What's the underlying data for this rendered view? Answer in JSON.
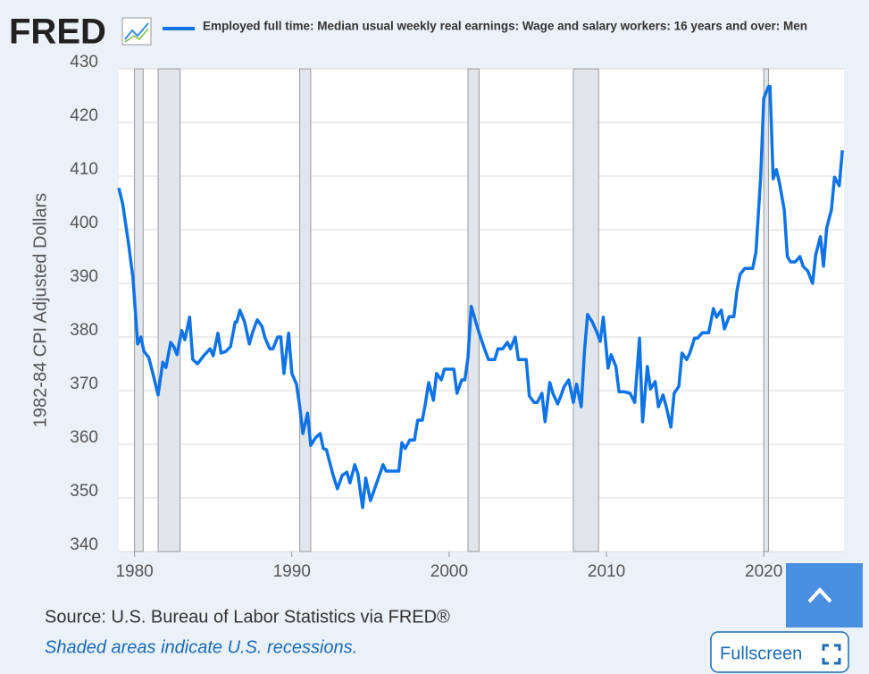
{
  "logo": "FRED",
  "fullscreen_button": "Fullscreen",
  "chart_data": {
    "type": "line",
    "y_label": "1982-84 CPI Adjusted Dollars",
    "source": "Source: U.S. Bureau of Labor Statistics via FRED®",
    "note": "Shaded areas indicate U.S. recessions.",
    "xlim": [
      1979,
      2025.1
    ],
    "xticks": [
      1980,
      1990,
      2000,
      2010,
      2020
    ],
    "ylim": [
      340,
      430
    ],
    "yticks": [
      340,
      350,
      360,
      370,
      380,
      390,
      400,
      410,
      420,
      430
    ],
    "grid": true,
    "recessions": [
      [
        1980.0,
        1980.55
      ],
      [
        1981.5,
        1982.9
      ],
      [
        1990.5,
        1991.2
      ],
      [
        2001.2,
        2001.9
      ],
      [
        2007.9,
        2009.5
      ],
      [
        2020.0,
        2020.3
      ]
    ],
    "x": [
      1979.0,
      1979.25,
      1979.6,
      1979.9,
      1980.2,
      1980.4,
      1980.6,
      1980.9,
      1981.2,
      1981.5,
      1981.8,
      1982.0,
      1982.3,
      1982.5,
      1982.7,
      1983.0,
      1983.2,
      1983.5,
      1983.7,
      1984.0,
      1984.4,
      1984.8,
      1985.0,
      1985.3,
      1985.5,
      1985.8,
      1986.1,
      1986.4,
      1986.5,
      1986.7,
      1987.0,
      1987.3,
      1987.5,
      1987.8,
      1988.1,
      1988.3,
      1988.6,
      1988.8,
      1989.1,
      1989.3,
      1989.5,
      1989.8,
      1990.0,
      1990.3,
      1990.5,
      1990.7,
      1991.0,
      1991.2,
      1991.5,
      1991.8,
      1992.0,
      1992.2,
      1992.6,
      1992.9,
      1993.2,
      1993.5,
      1993.7,
      1994.0,
      1994.2,
      1994.5,
      1994.7,
      1995.0,
      1995.3,
      1995.8,
      1996.0,
      1996.4,
      1996.8,
      1997.0,
      1997.2,
      1997.5,
      1997.8,
      1998.0,
      1998.3,
      1998.5,
      1998.7,
      1999.0,
      1999.2,
      1999.5,
      1999.7,
      2000.0,
      2000.3,
      2000.5,
      2000.8,
      2001.0,
      2001.2,
      2001.4,
      2001.7,
      2001.9,
      2002.2,
      2002.5,
      2002.9,
      2003.1,
      2003.4,
      2003.7,
      2003.9,
      2004.2,
      2004.4,
      2004.9,
      2005.1,
      2005.4,
      2005.6,
      2005.9,
      2006.1,
      2006.4,
      2006.6,
      2006.9,
      2007.1,
      2007.3,
      2007.6,
      2007.9,
      2008.1,
      2008.4,
      2008.6,
      2008.8,
      2009.1,
      2009.4,
      2009.6,
      2009.8,
      2010.1,
      2010.3,
      2010.6,
      2010.8,
      2011.1,
      2011.5,
      2011.8,
      2012.1,
      2012.3,
      2012.6,
      2012.8,
      2013.1,
      2013.3,
      2013.6,
      2013.8,
      2014.1,
      2014.3,
      2014.6,
      2014.8,
      2015.1,
      2015.3,
      2015.6,
      2015.8,
      2016.1,
      2016.5,
      2016.8,
      2017.0,
      2017.3,
      2017.5,
      2017.8,
      2018.1,
      2018.3,
      2018.5,
      2018.8,
      2019.3,
      2019.5,
      2019.8,
      2020.0,
      2020.3,
      2020.4,
      2020.6,
      2020.8,
      2021.0,
      2021.3,
      2021.5,
      2021.7,
      2022.0,
      2022.3,
      2022.5,
      2022.8,
      2023.1,
      2023.3,
      2023.6,
      2023.8,
      2024.0,
      2024.3,
      2024.5,
      2024.8,
      2025.0
    ],
    "series": [
      {
        "name": "Employed full time: Median usual weekly real earnings: Wage and salary workers: 16 years and over: Men",
        "color": "#0e73e6",
        "values": [
          407.8,
          404.8,
          397.8,
          391,
          378.7,
          380,
          377.3,
          376.2,
          372.8,
          369.2,
          375.3,
          374.3,
          379,
          378.2,
          376.7,
          381.2,
          379.5,
          383.7,
          375.8,
          375,
          376.5,
          377.8,
          376.5,
          380.7,
          377,
          377.3,
          378.2,
          382.8,
          382.8,
          385,
          382.8,
          378.7,
          380.8,
          383.2,
          382,
          379.8,
          377.8,
          377.8,
          380,
          380,
          373.2,
          380.7,
          373.2,
          371.2,
          367,
          362,
          365.8,
          359.8,
          361.2,
          362,
          359.2,
          359,
          354.5,
          351.7,
          354.2,
          354.8,
          352.8,
          356.2,
          354.5,
          348.2,
          353.7,
          349.5,
          352,
          356.2,
          355,
          355,
          355,
          360.3,
          359.2,
          360.8,
          360.8,
          364.5,
          364.5,
          367.8,
          371.5,
          368.2,
          373.2,
          372,
          374,
          374,
          374,
          369.5,
          372,
          372,
          376.2,
          385.7,
          382.8,
          380.8,
          378.2,
          375.8,
          375.8,
          377.8,
          377.8,
          379,
          377.8,
          380,
          375.8,
          375.8,
          369,
          367.8,
          367.8,
          369.5,
          364.2,
          371.5,
          369.5,
          367.5,
          369,
          370.7,
          372,
          367.8,
          371.2,
          367,
          377.3,
          384.2,
          382.8,
          380.8,
          379.2,
          383.7,
          374.2,
          376.7,
          374.5,
          369.8,
          369.8,
          369.5,
          367.8,
          379.8,
          364.2,
          374.5,
          370.3,
          371.7,
          367,
          369.2,
          367,
          363.2,
          369.5,
          370.8,
          377,
          375.8,
          377,
          379.8,
          379.8,
          380.8,
          380.8,
          385.3,
          383.7,
          385,
          381.5,
          383.8,
          383.8,
          388.7,
          391.7,
          392.8,
          392.8,
          395.8,
          409.5,
          424.5,
          426.7,
          426.7,
          409.5,
          411.2,
          408.7,
          403.7,
          395,
          394,
          394,
          395,
          393.2,
          392.3,
          390,
          395.3,
          398.7,
          393.2,
          400.3,
          403.7,
          409.8,
          408.2,
          414.8
        ]
      }
    ]
  }
}
